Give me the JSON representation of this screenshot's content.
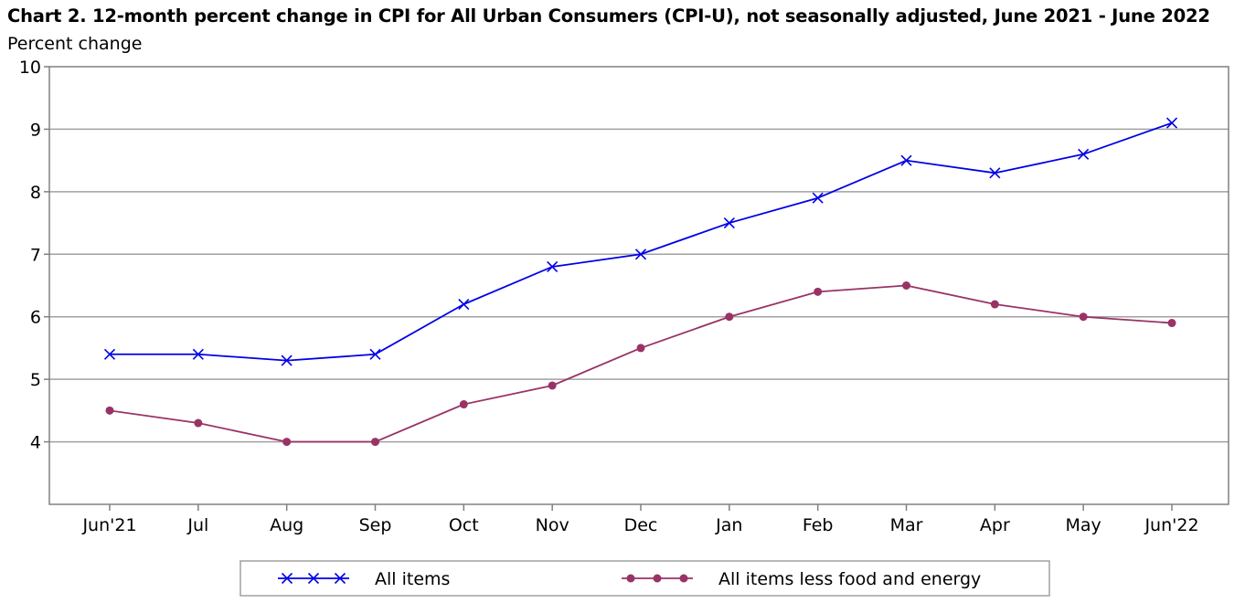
{
  "chart_data": {
    "type": "line",
    "title": "Chart 2. 12-month percent change in CPI for All Urban Consumers (CPI-U), not seasonally adjusted, June 2021 - June 2022",
    "ylabel": "Percent change",
    "xlabel": "",
    "categories": [
      "Jun'21",
      "Jul",
      "Aug",
      "Sep",
      "Oct",
      "Nov",
      "Dec",
      "Jan",
      "Feb",
      "Mar",
      "Apr",
      "May",
      "Jun'22"
    ],
    "ylim": [
      3,
      10
    ],
    "yticks": [
      4,
      5,
      6,
      7,
      8,
      9,
      10
    ],
    "grid": true,
    "legend_position": "bottom",
    "series": [
      {
        "name": "All items",
        "color": "#0000e6",
        "marker": "x",
        "values": [
          5.4,
          5.4,
          5.3,
          5.4,
          6.2,
          6.8,
          7.0,
          7.5,
          7.9,
          8.5,
          8.3,
          8.6,
          9.1
        ]
      },
      {
        "name": "All items less food and energy",
        "color": "#993366",
        "marker": "circle",
        "values": [
          4.5,
          4.3,
          4.0,
          4.0,
          4.6,
          4.9,
          5.5,
          6.0,
          6.4,
          6.5,
          6.2,
          6.0,
          5.9
        ]
      }
    ]
  }
}
